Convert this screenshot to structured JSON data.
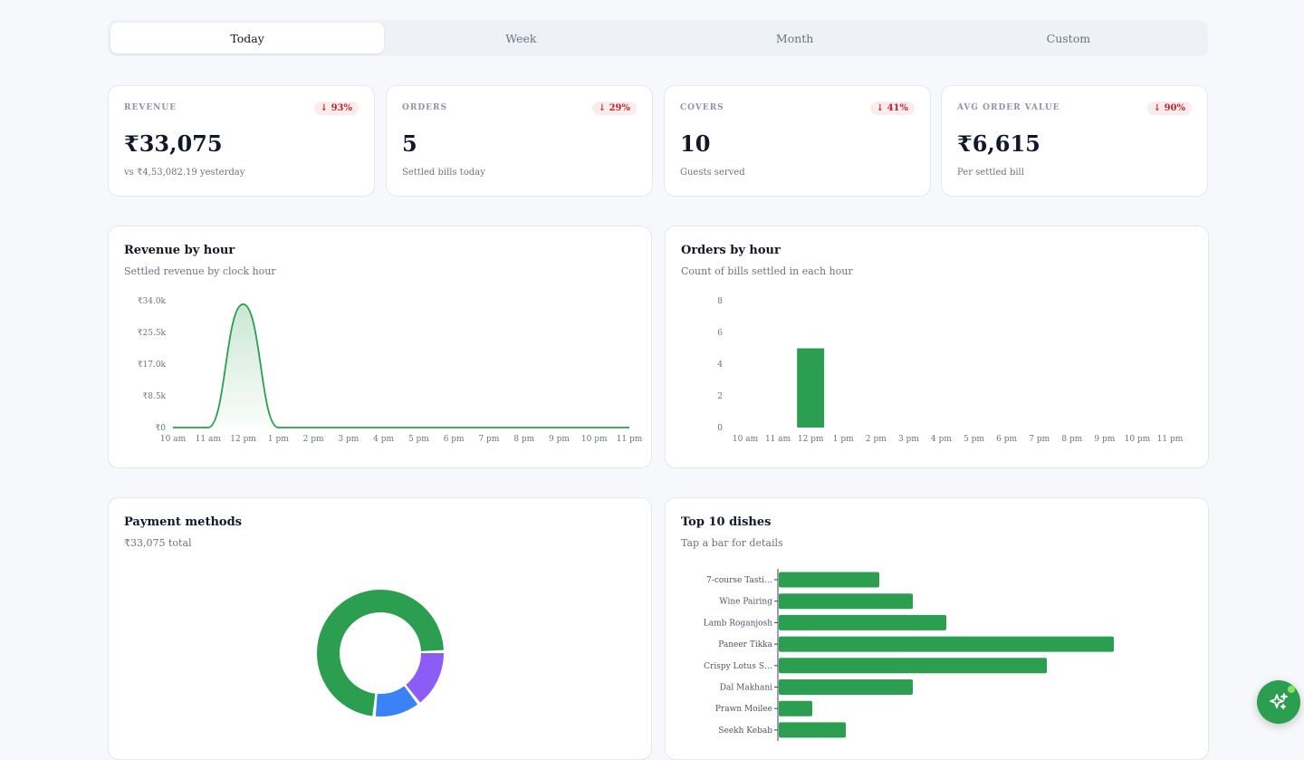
{
  "tabs": [
    "Today",
    "Week",
    "Month",
    "Custom"
  ],
  "active_tab": "Today",
  "kpis": [
    {
      "label": "REVENUE",
      "badge": "↓ 93%",
      "value": "₹33,075",
      "sub": "vs ₹4,53,082.19 yesterday"
    },
    {
      "label": "ORDERS",
      "badge": "↓ 29%",
      "value": "5",
      "sub": "Settled bills today"
    },
    {
      "label": "COVERS",
      "badge": "↓ 41%",
      "value": "10",
      "sub": "Guests served"
    },
    {
      "label": "AVG ORDER VALUE",
      "badge": "↓ 90%",
      "value": "₹6,615",
      "sub": "Per settled bill"
    }
  ],
  "colors": {
    "accent": "#2b9e4f",
    "badge_red": "#c0262d",
    "purple": "#8b5cf6",
    "blue": "#3b82f6"
  },
  "revenue_card": {
    "title": "Revenue by hour",
    "subtitle": "Settled revenue by clock hour"
  },
  "orders_card": {
    "title": "Orders by hour",
    "subtitle": "Count of bills settled in each hour"
  },
  "payments_card": {
    "title": "Payment methods",
    "subtitle": "₹33,075 total"
  },
  "dishes_card": {
    "title": "Top 10 dishes",
    "subtitle": "Tap a bar for details"
  },
  "fab": {
    "icon": "sparkle-icon"
  },
  "chart_data": [
    {
      "type": "area",
      "x": [
        "10 am",
        "11 am",
        "12 pm",
        "1 pm",
        "2 pm",
        "3 pm",
        "4 pm",
        "5 pm",
        "6 pm",
        "7 pm",
        "8 pm",
        "9 pm",
        "10 pm",
        "11 pm"
      ],
      "values": [
        0,
        0,
        33075,
        0,
        0,
        0,
        0,
        0,
        0,
        0,
        0,
        0,
        0,
        0
      ],
      "yticks": [
        "₹0",
        "₹8.5k",
        "₹17.0k",
        "₹25.5k",
        "₹34.0k"
      ],
      "ytick_values": [
        0,
        8500,
        17000,
        25500,
        34000
      ],
      "ylim": [
        0,
        34000
      ]
    },
    {
      "type": "bar",
      "categories": [
        "10 am",
        "11 am",
        "12 pm",
        "1 pm",
        "2 pm",
        "3 pm",
        "4 pm",
        "5 pm",
        "6 pm",
        "7 pm",
        "8 pm",
        "9 pm",
        "10 pm",
        "11 pm"
      ],
      "values": [
        0,
        0,
        5,
        0,
        0,
        0,
        0,
        0,
        0,
        0,
        0,
        0,
        0,
        0
      ],
      "yticks": [
        "0",
        "2",
        "4",
        "6",
        "8"
      ],
      "ytick_values": [
        0,
        2,
        4,
        6,
        8
      ],
      "ylim": [
        0,
        8
      ]
    },
    {
      "type": "pie",
      "values": [
        0.73,
        0.12,
        0.15
      ],
      "colors": [
        "#2b9e4f",
        "#3b82f6",
        "#8b5cf6"
      ]
    },
    {
      "type": "bar",
      "orientation": "horizontal",
      "categories": [
        "7-course Tasti…",
        "Wine Pairing",
        "Lamb Roganjosh",
        "Paneer Tikka",
        "Crispy Lotus S…",
        "Dal Makhani",
        "Prawn Moilee",
        "Seekh Kebab"
      ],
      "values": [
        3,
        4,
        5,
        10,
        8,
        4,
        1,
        2
      ]
    }
  ]
}
